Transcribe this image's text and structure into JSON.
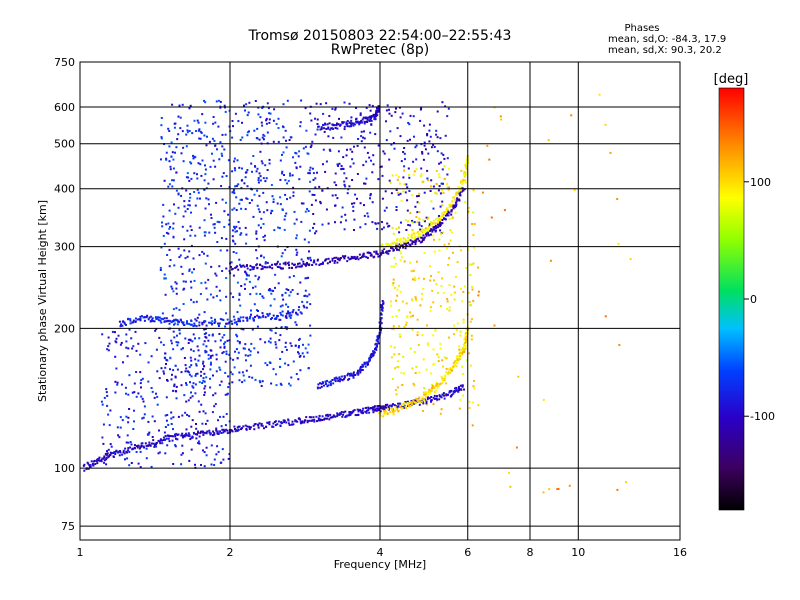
{
  "chart_data": {
    "type": "scatter",
    "title": "Tromsø 20150803 22:54:00–22:55:43",
    "subtitle": "RwPretec (8p)",
    "stats": {
      "heading": "Phases",
      "line_o": "mean, sd,O: -84.3, 17.9",
      "line_x": "mean, sd,X:  90.3, 20.2"
    },
    "xlabel": "Frequency [MHz]",
    "ylabel": "Stationary phase Virtual Height [km]",
    "x_scale": "log",
    "y_scale": "log",
    "xlim": [
      1,
      16
    ],
    "ylim": [
      70,
      750
    ],
    "x_ticks": [
      1,
      2,
      4,
      6,
      8,
      10,
      16
    ],
    "x_tick_labels": [
      "1",
      "2",
      "4",
      "6",
      "8",
      "10",
      "16"
    ],
    "y_ticks": [
      75,
      100,
      200,
      300,
      400,
      500,
      600,
      750
    ],
    "y_tick_labels": [
      "75",
      "100",
      "200",
      "300",
      "400",
      "500",
      "600",
      "750"
    ],
    "grid": true,
    "colorbar": {
      "label": "[deg]",
      "range": [
        -180,
        180
      ],
      "ticks": [
        100,
        0,
        -100
      ],
      "tick_labels": [
        "100",
        "0",
        "-100"
      ]
    },
    "traces": [
      {
        "phase": -100,
        "x": [
          1.02,
          1.1,
          1.2,
          1.35,
          1.5,
          1.7,
          1.9,
          2.1,
          2.4,
          2.7,
          3.0,
          3.3,
          3.6,
          3.9,
          4.1,
          4.5,
          5.0,
          5.5,
          5.9
        ],
        "y": [
          100,
          105,
          108,
          112,
          116,
          118,
          120,
          122,
          124,
          126,
          128,
          130,
          132,
          134,
          135,
          137,
          140,
          144,
          150
        ]
      },
      {
        "phase": -90,
        "x": [
          3.0,
          3.3,
          3.6,
          3.8,
          3.95,
          4.0,
          4.05
        ],
        "y": [
          150,
          155,
          160,
          170,
          185,
          200,
          230
        ]
      },
      {
        "phase": 100,
        "x": [
          4.0,
          4.4,
          4.8,
          5.2,
          5.6,
          5.9,
          6.0
        ],
        "y": [
          130,
          135,
          140,
          150,
          165,
          180,
          200
        ]
      },
      {
        "phase": -80,
        "x": [
          1.2,
          1.35,
          1.5,
          1.7,
          2.0,
          2.4,
          2.8
        ],
        "y": [
          205,
          210,
          208,
          205,
          207,
          212,
          218
        ]
      },
      {
        "phase": -110,
        "x": [
          2.0,
          2.4,
          2.8,
          3.2,
          3.6,
          4.0,
          4.4,
          4.8,
          5.2,
          5.6,
          5.9
        ],
        "y": [
          270,
          272,
          275,
          280,
          285,
          290,
          300,
          310,
          330,
          360,
          400
        ]
      },
      {
        "phase": 90,
        "x": [
          4.0,
          4.5,
          5.0,
          5.5,
          5.9,
          6.0
        ],
        "y": [
          300,
          310,
          330,
          360,
          420,
          470
        ]
      },
      {
        "phase": -100,
        "x": [
          3.0,
          3.4,
          3.7,
          3.9,
          4.0
        ],
        "y": [
          540,
          550,
          560,
          570,
          600
        ]
      }
    ],
    "clusters": [
      {
        "phase": -75,
        "x_range": [
          1.45,
          2.9
        ],
        "y_range": [
          150,
          620
        ],
        "density": "high"
      },
      {
        "phase": -85,
        "x_range": [
          1.1,
          2.0
        ],
        "y_range": [
          100,
          200
        ],
        "density": "medium"
      },
      {
        "phase": -95,
        "x_range": [
          2.9,
          5.5
        ],
        "y_range": [
          320,
          620
        ],
        "density": "medium"
      },
      {
        "phase": 95,
        "x_range": [
          4.2,
          6.2
        ],
        "y_range": [
          130,
          450
        ],
        "density": "medium"
      },
      {
        "phase": 120,
        "x_range": [
          6.0,
          13
        ],
        "y_range": [
          85,
          650
        ],
        "density": "low"
      }
    ]
  },
  "colors": {
    "grid": "#000000",
    "scale_stops": [
      "#000000",
      "#3c0060",
      "#2a00c8",
      "#0040ff",
      "#00c0ff",
      "#00e060",
      "#90ff00",
      "#ffff00",
      "#ff9000",
      "#ff0000"
    ]
  }
}
